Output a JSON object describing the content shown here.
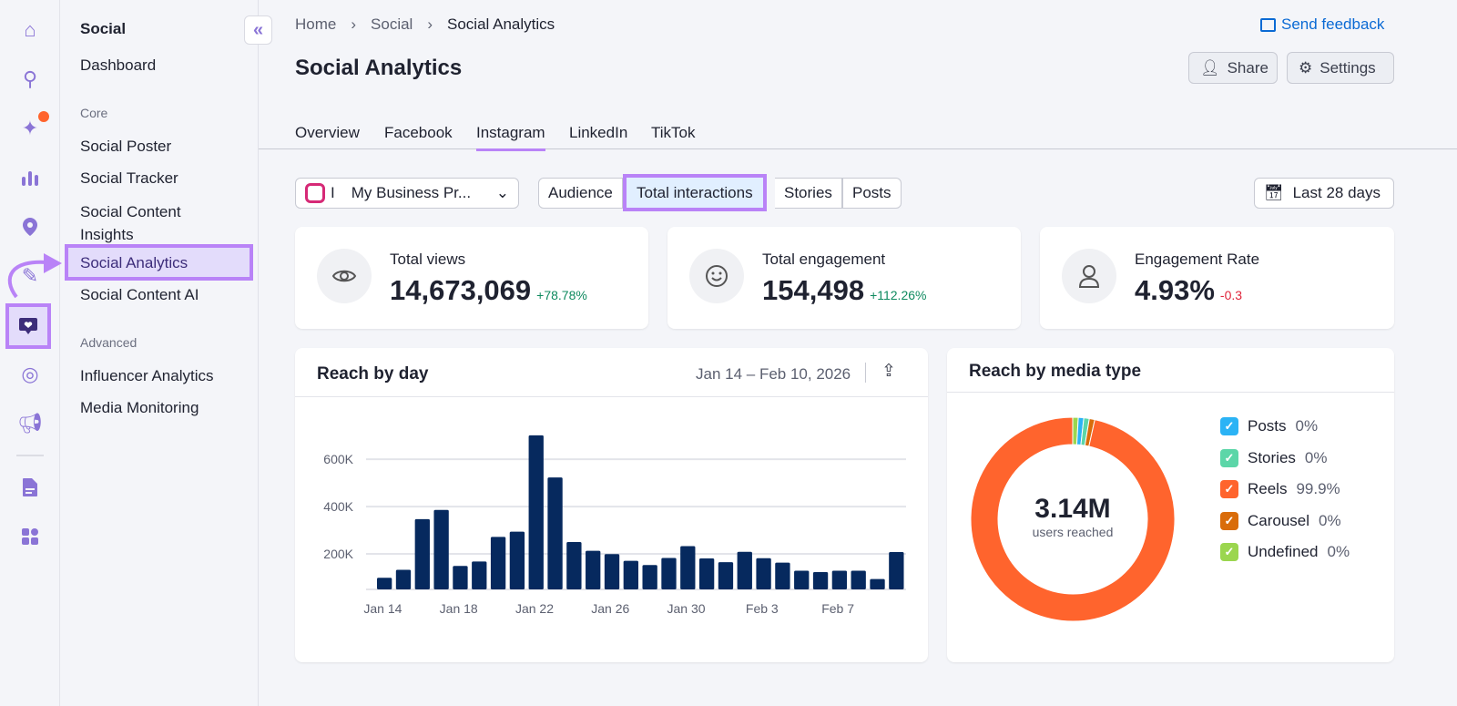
{
  "rail": {
    "icons": [
      "home-icon",
      "search-cog-icon",
      "sparkles-trend-icon",
      "bar-chart-icon",
      "location-pin-icon",
      "pencil-icon",
      "social-heart-chat-icon",
      "cursor-target-icon",
      "megaphone-icon",
      "document-icon",
      "apps-grid-icon"
    ],
    "active": "social-heart-chat-icon",
    "badge_color": "#ff642d"
  },
  "sidebar": {
    "title": "Social",
    "dashboard": "Dashboard",
    "core_heading": "Core",
    "core": [
      "Social Poster",
      "Social Tracker",
      "Social Content Insights",
      "Social Analytics",
      "Social Content AI"
    ],
    "active": "Social Analytics",
    "advanced_heading": "Advanced",
    "advanced": [
      "Influencer Analytics",
      "Media Monitoring"
    ]
  },
  "breadcrumb": [
    "Home",
    "Social",
    "Social Analytics"
  ],
  "feedback": "Send feedback",
  "title": "Social Analytics",
  "actions": {
    "share": "Share",
    "settings": "Settings"
  },
  "tabs": [
    "Overview",
    "Facebook",
    "Instagram",
    "LinkedIn",
    "TikTok"
  ],
  "active_tab": "Instagram",
  "profile": {
    "initial": "I",
    "name": "My Business Pr..."
  },
  "segments": [
    "Audience",
    "Total interactions",
    "Stories",
    "Posts"
  ],
  "active_segment": "Total interactions",
  "date_range": "Last 28 days",
  "kpis": [
    {
      "label": "Total views",
      "value": "14,673,069",
      "delta": "+78.78%",
      "icon": "eye-icon",
      "trend": "up"
    },
    {
      "label": "Total engagement",
      "value": "154,498",
      "delta": "+112.26%",
      "icon": "smiley-icon",
      "trend": "up"
    },
    {
      "label": "Engagement Rate",
      "value": "4.93%",
      "delta": "-0.3",
      "icon": "user-icon",
      "trend": "down"
    }
  ],
  "colors": {
    "accent": "#8a74d6",
    "highlight": "#b983f7",
    "up": "#0f8a5f",
    "down": "#e0243a",
    "bar": "#06295e"
  },
  "chart_data": [
    {
      "type": "bar",
      "title": "Reach by day",
      "date_range": "Jan 14 – Feb 10, 2026",
      "categories": [
        "Jan 14",
        "Jan 15",
        "Jan 16",
        "Jan 17",
        "Jan 18",
        "Jan 19",
        "Jan 20",
        "Jan 21",
        "Jan 22",
        "Jan 23",
        "Jan 24",
        "Jan 25",
        "Jan 26",
        "Jan 27",
        "Jan 28",
        "Jan 29",
        "Jan 30",
        "Jan 31",
        "Feb 1",
        "Feb 2",
        "Feb 3",
        "Feb 4",
        "Feb 5",
        "Feb 6",
        "Feb 7",
        "Feb 8",
        "Feb 9",
        "Feb 10"
      ],
      "values": [
        99000,
        133000,
        347000,
        386000,
        149000,
        168000,
        272000,
        294000,
        701000,
        523000,
        250000,
        213000,
        199000,
        171000,
        153000,
        183000,
        233000,
        181000,
        165000,
        209000,
        182000,
        163000,
        129000,
        123000,
        129000,
        129000,
        94000,
        208000
      ],
      "x_tick_labels": [
        "Jan 14",
        "Jan 18",
        "Jan 22",
        "Jan 26",
        "Jan 30",
        "Feb 3",
        "Feb 7"
      ],
      "y_tick_labels": [
        "200K",
        "400K",
        "600K"
      ],
      "y_ticks": [
        200000,
        400000,
        600000
      ],
      "ylim": [
        50000,
        720000
      ],
      "grid": true
    },
    {
      "type": "pie",
      "title": "Reach by media type",
      "center_value": "3.14M",
      "center_label": "users reached",
      "donut": true,
      "slices": [
        {
          "name": "Posts",
          "label": "0%",
          "value": 0,
          "color": "#2bb3f5"
        },
        {
          "name": "Stories",
          "label": "0%",
          "value": 0,
          "color": "#5cd6a8"
        },
        {
          "name": "Reels",
          "label": "99.9%",
          "value": 99.9,
          "color": "#ff642d"
        },
        {
          "name": "Carousel",
          "label": "0%",
          "value": 0,
          "color": "#d96c0a"
        },
        {
          "name": "Undefined",
          "label": "0%",
          "value": 0,
          "color": "#9bd64f"
        }
      ],
      "legend": "right"
    }
  ]
}
